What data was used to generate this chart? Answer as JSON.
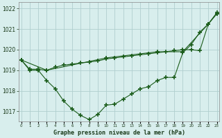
{
  "title": "Graphe pression niveau de la mer (hPa)",
  "background_color": "#d8eeed",
  "grid_color": "#b0cece",
  "line_color": "#1a5c1a",
  "x_ticks": [
    0,
    1,
    2,
    3,
    4,
    5,
    6,
    7,
    8,
    9,
    10,
    11,
    12,
    13,
    14,
    15,
    16,
    17,
    18,
    19,
    20,
    21,
    22,
    23
  ],
  "ylim": [
    1016.5,
    1022.3
  ],
  "yticks": [
    1017,
    1018,
    1019,
    1020,
    1021,
    1022
  ],
  "line_bottom": [
    1019.5,
    1019.0,
    1019.0,
    1018.5,
    1018.1,
    1017.5,
    1017.1,
    1016.8,
    1016.6,
    1016.85,
    1017.3,
    1017.35,
    1017.6,
    1017.85,
    1018.1,
    1018.2,
    1018.5,
    1018.65,
    1018.65,
    1019.85,
    1020.25,
    1020.85,
    1021.25,
    1021.75
  ],
  "line_middle": [
    1019.5,
    1019.05,
    1019.05,
    1019.0,
    1019.15,
    1019.25,
    1019.3,
    1019.35,
    1019.4,
    1019.45,
    1019.55,
    1019.6,
    1019.65,
    1019.7,
    1019.75,
    1019.8,
    1019.85,
    1019.9,
    1019.95,
    1020.0,
    1020.0,
    1019.95,
    1021.25,
    1021.75
  ],
  "line_top_x": [
    0,
    3,
    10,
    16,
    19,
    22,
    23
  ],
  "line_top_y": [
    1019.5,
    1019.0,
    1019.6,
    1019.9,
    1019.9,
    1021.25,
    1021.8
  ]
}
